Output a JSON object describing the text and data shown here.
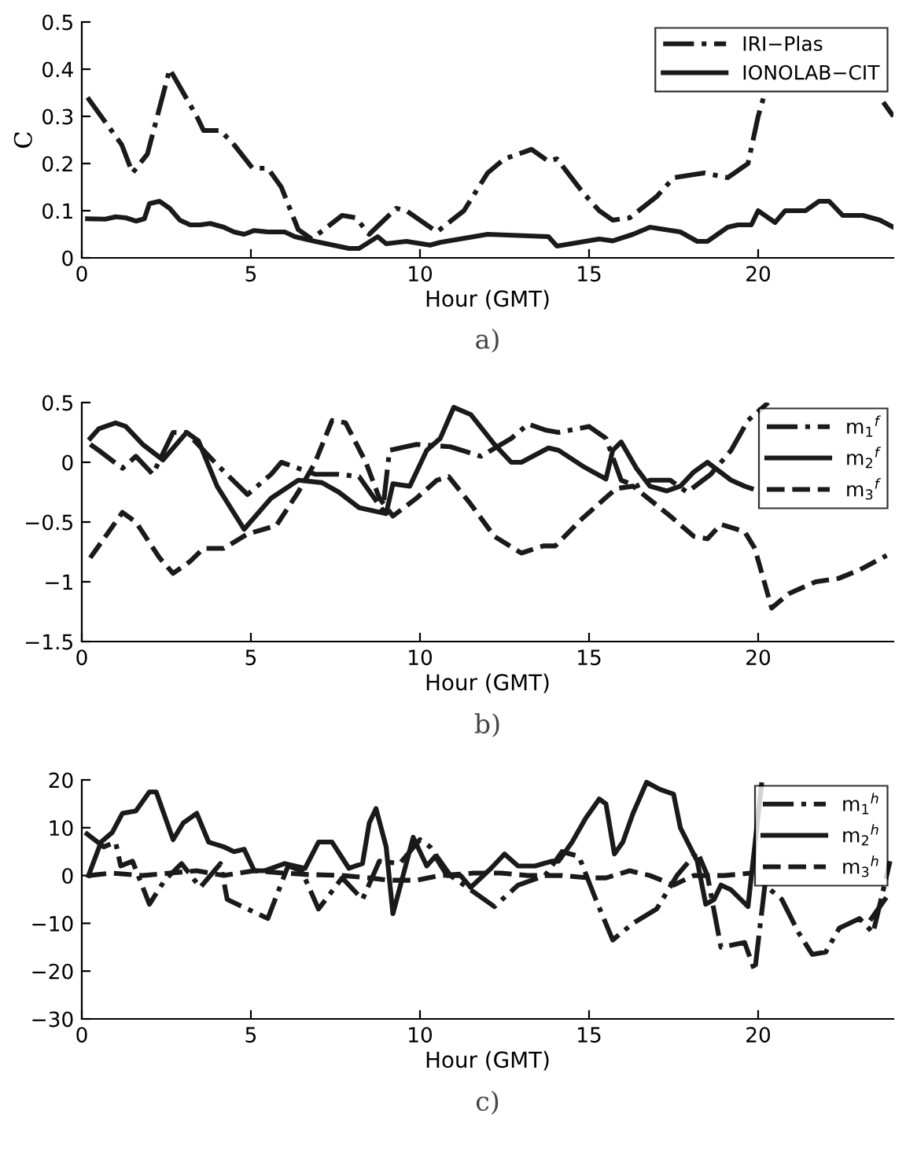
{
  "chart_data": [
    {
      "type": "line",
      "xlabel": "Hour (GMT)",
      "ylabel": "C",
      "annotations": [
        "a)"
      ],
      "xlim": [
        0,
        24
      ],
      "xticks": [
        0,
        5,
        10,
        15,
        20
      ],
      "ylim": [
        0,
        0.5
      ],
      "yticks": [
        0,
        0.1,
        0.2,
        0.3,
        0.4,
        0.5
      ],
      "grid": false,
      "legend": "top right",
      "series": [
        {
          "name": "IRI−Plas",
          "color": "#1a1a1a",
          "line_style": "dashdot",
          "x": [
            0.17,
            1.18,
            1.5,
            1.94,
            2.6,
            3.4,
            3.6,
            4.1,
            4.5,
            5.05,
            5.5,
            5.9,
            6.4,
            6.8,
            7.7,
            8.1,
            8.5,
            9.3,
            9.6,
            10.3,
            10.5,
            11.3,
            12.0,
            12.5,
            13.3,
            13.8,
            14.05,
            14.8,
            15.3,
            15.7,
            16.2,
            17.0,
            17.5,
            18.4,
            19.1,
            19.7,
            20.0,
            20.2,
            22.0,
            23.7,
            24.0
          ],
          "values": [
            0.34,
            0.24,
            0.18,
            0.22,
            0.4,
            0.3,
            0.27,
            0.27,
            0.24,
            0.19,
            0.19,
            0.15,
            0.06,
            0.04,
            0.09,
            0.085,
            0.05,
            0.105,
            0.1,
            0.065,
            0.055,
            0.1,
            0.18,
            0.21,
            0.23,
            0.205,
            0.21,
            0.14,
            0.1,
            0.08,
            0.085,
            0.13,
            0.17,
            0.18,
            0.17,
            0.2,
            0.3,
            0.35,
            null,
            0.33,
            0.3
          ]
        },
        {
          "name": "IONOLAB−CIT",
          "color": "#1a1a1a",
          "line_style": "solid",
          "x": [
            0.17,
            0.7,
            1.0,
            1.3,
            1.6,
            1.85,
            2.0,
            2.3,
            2.6,
            2.9,
            3.2,
            3.5,
            3.8,
            4.2,
            4.5,
            4.8,
            5.1,
            5.5,
            6.0,
            6.3,
            6.9,
            7.9,
            8.2,
            8.75,
            9.0,
            9.6,
            10.3,
            10.6,
            12.0,
            13.8,
            14.05,
            15.3,
            15.7,
            16.3,
            16.8,
            17.7,
            18.2,
            18.5,
            19.1,
            19.4,
            19.8,
            20.0,
            20.5,
            20.8,
            21.4,
            21.8,
            22.1,
            22.5,
            23.1,
            23.6,
            24.0
          ],
          "values": [
            0.083,
            0.082,
            0.087,
            0.085,
            0.078,
            0.083,
            0.115,
            0.12,
            0.105,
            0.08,
            0.07,
            0.07,
            0.073,
            0.065,
            0.055,
            0.05,
            0.058,
            0.055,
            0.055,
            0.045,
            0.035,
            0.02,
            0.02,
            0.045,
            0.03,
            0.035,
            0.027,
            0.033,
            0.05,
            0.045,
            0.025,
            0.04,
            0.036,
            0.05,
            0.065,
            0.055,
            0.035,
            0.035,
            0.065,
            0.07,
            0.07,
            0.1,
            0.075,
            0.1,
            0.1,
            0.12,
            0.12,
            0.09,
            0.09,
            0.08,
            0.065
          ]
        }
      ]
    },
    {
      "type": "line",
      "xlabel": "Hour (GMT)",
      "annotations": [
        "b)"
      ],
      "xlim": [
        0,
        24
      ],
      "xticks": [
        0,
        5,
        10,
        15,
        20
      ],
      "ylim": [
        -1.5,
        0.5
      ],
      "yticks": [
        {
          "value": -1.5,
          "label": "−1.5"
        },
        {
          "value": -1,
          "label": "−1"
        },
        {
          "value": -0.5,
          "label": "−0.5"
        },
        0,
        0.5
      ],
      "grid": false,
      "legend": "top right",
      "series": [
        {
          "name": "m$_{1}$$^{f}$",
          "color": "#1a1a1a",
          "line_style": "dashdot",
          "x": [
            0.25,
            0.5,
            1.2,
            1.6,
            2.1,
            2.7,
            3.1,
            4.0,
            4.9,
            5.6,
            5.9,
            6.9,
            7.6,
            8.2,
            8.9,
            9.1,
            9.9,
            10.9,
            11.8,
            12.7,
            13.2,
            13.7,
            14.1,
            15.0,
            15.5,
            15.95,
            16.4,
            16.8,
            17.4,
            17.9,
            18.6,
            19.2,
            19.7,
            20.3
          ],
          "values": [
            0.15,
            0.1,
            -0.05,
            0.05,
            -0.1,
            0.25,
            0.25,
            -0.02,
            -0.27,
            -0.1,
            0.0,
            -0.1,
            -0.1,
            -0.12,
            -0.4,
            0.1,
            0.15,
            0.13,
            0.05,
            0.2,
            0.32,
            0.27,
            0.25,
            0.3,
            0.2,
            -0.15,
            -0.2,
            -0.15,
            -0.15,
            -0.25,
            -0.1,
            0.1,
            0.35,
            0.5
          ]
        },
        {
          "name": "m$_{2}$$^{f}$",
          "color": "#1a1a1a",
          "line_style": "solid",
          "x": [
            0.25,
            0.5,
            1.0,
            1.3,
            1.8,
            2.4,
            3.1,
            3.45,
            4.0,
            4.8,
            5.6,
            6.4,
            7.1,
            7.6,
            8.2,
            9.0,
            9.2,
            9.7,
            10.2,
            10.6,
            11.0,
            11.5,
            12.2,
            12.7,
            13.0,
            13.8,
            14.1,
            14.8,
            15.5,
            15.7,
            15.95,
            16.4,
            16.8,
            17.3,
            17.7,
            18.1,
            18.5,
            19.2,
            19.6,
            19.8
          ],
          "values": [
            0.2,
            0.28,
            0.33,
            0.3,
            0.15,
            0.02,
            0.25,
            0.18,
            -0.2,
            -0.56,
            -0.3,
            -0.15,
            -0.17,
            -0.25,
            -0.38,
            -0.43,
            -0.18,
            -0.2,
            0.1,
            0.2,
            0.46,
            0.4,
            0.15,
            0.0,
            0.0,
            0.12,
            0.1,
            -0.03,
            -0.14,
            0.1,
            0.17,
            -0.05,
            -0.2,
            -0.24,
            -0.2,
            -0.08,
            0.0,
            -0.15,
            -0.2,
            -0.22
          ]
        },
        {
          "name": "m$_{3}$$^{f}$",
          "color": "#1a1a1a",
          "line_style": "dashed",
          "x": [
            0.25,
            1.2,
            1.6,
            2.3,
            2.7,
            3.2,
            3.6,
            4.2,
            4.9,
            5.75,
            6.4,
            6.9,
            7.4,
            7.8,
            8.4,
            8.8,
            9.2,
            9.9,
            10.5,
            10.85,
            11.5,
            12.2,
            13.0,
            13.65,
            14.0,
            14.8,
            15.8,
            16.3,
            17.4,
            18.1,
            18.5,
            18.9,
            19.6,
            19.9,
            20.4,
            20.9,
            21.7,
            22.4,
            23.0,
            23.8
          ],
          "values": [
            -0.8,
            -0.42,
            -0.5,
            -0.8,
            -0.93,
            -0.83,
            -0.72,
            -0.72,
            -0.6,
            -0.53,
            -0.25,
            0.0,
            0.35,
            0.33,
            0.0,
            -0.3,
            -0.45,
            -0.3,
            -0.15,
            -0.12,
            -0.35,
            -0.62,
            -0.76,
            -0.7,
            -0.7,
            -0.47,
            -0.22,
            -0.2,
            -0.45,
            -0.62,
            -0.64,
            -0.52,
            -0.58,
            -0.72,
            -1.22,
            -1.1,
            -1.0,
            -0.97,
            -0.9,
            -0.78
          ]
        }
      ]
    },
    {
      "type": "line",
      "xlabel": "Hour (GMT)",
      "annotations": [
        "c)"
      ],
      "xlim": [
        0,
        24
      ],
      "xticks": [
        0,
        5,
        10,
        15,
        20
      ],
      "ylim": [
        -30,
        20
      ],
      "yticks": [
        {
          "value": -30,
          "label": "−30"
        },
        {
          "value": -20,
          "label": "−20"
        },
        {
          "value": -10,
          "label": "−10"
        },
        0,
        10,
        20
      ],
      "grid": false,
      "legend": "top right",
      "series": [
        {
          "name": "m$_{1}$$^{h}$",
          "color": "#1a1a1a",
          "line_style": "dashdot",
          "x": [
            0.1,
            0.65,
            1.0,
            1.15,
            1.5,
            2.0,
            2.45,
            2.95,
            3.5,
            4.1,
            4.3,
            4.9,
            5.5,
            6.1,
            6.5,
            7.0,
            7.7,
            8.3,
            8.8,
            9.4,
            10.0,
            10.3,
            10.9,
            12.2,
            12.9,
            13.7,
            14.2,
            14.7,
            15.2,
            15.7,
            16.3,
            17.0,
            17.6,
            18.2,
            18.5,
            18.9,
            19.6,
            19.9,
            20.2,
            20.7,
            21.2,
            21.6,
            22.0,
            22.4,
            23.0,
            23.4,
            23.9
          ],
          "values": [
            9,
            6,
            7,
            2,
            3,
            -6,
            -1,
            2.5,
            -2.5,
            2.5,
            -5,
            -7,
            -9,
            2,
            1,
            -7,
            -0.5,
            -5,
            3,
            2.5,
            7.5,
            6,
            0,
            -6.5,
            -2,
            0,
            5,
            4,
            -5,
            -13.5,
            -10,
            -7,
            0,
            5,
            0,
            -15,
            -14,
            -20,
            -2,
            -5,
            -12,
            -16.5,
            -16,
            -11,
            -9,
            -12,
            3
          ]
        },
        {
          "name": "m$_{2}$$^{h}$",
          "color": "#1a1a1a",
          "line_style": "solid",
          "x": [
            0.2,
            0.57,
            0.9,
            1.2,
            1.6,
            2.0,
            2.2,
            2.7,
            3.0,
            3.4,
            3.75,
            4.2,
            4.5,
            4.8,
            5.1,
            5.4,
            6.0,
            6.6,
            7.0,
            7.4,
            7.9,
            8.3,
            8.5,
            8.7,
            9.0,
            9.2,
            9.8,
            10.2,
            10.45,
            10.8,
            11.2,
            11.5,
            12.1,
            12.5,
            12.9,
            13.4,
            13.9,
            14.1,
            14.5,
            14.9,
            15.3,
            15.5,
            15.75,
            16.0,
            16.3,
            16.7,
            17.1,
            17.5,
            17.7,
            18.2,
            18.45,
            18.7,
            18.9,
            19.2,
            19.7,
            20.1,
            22.0,
            23.35,
            23.75
          ],
          "values": [
            0,
            7,
            9,
            13,
            13.5,
            17.5,
            17.5,
            7.5,
            11,
            13,
            7,
            6,
            5,
            5.5,
            1,
            1,
            2.5,
            1.5,
            7,
            7,
            1.5,
            2.5,
            11,
            14,
            6,
            -8,
            8,
            2,
            4,
            0,
            0,
            -2.5,
            1.5,
            4.5,
            2,
            2,
            3,
            3,
            7,
            12,
            16,
            15,
            4.5,
            7,
            13,
            19.5,
            18,
            17,
            10,
            3,
            -6,
            -5,
            -2,
            -3,
            -6.5,
            19,
            null,
            -9,
            -5
          ]
        },
        {
          "name": "m$_{3}$$^{h}$",
          "color": "#1a1a1a",
          "line_style": "dashed",
          "x": [
            0.2,
            0.9,
            1.8,
            2.6,
            3.4,
            4.2,
            5.1,
            6.0,
            6.7,
            7.7,
            8.5,
            9.1,
            9.9,
            10.6,
            11.6,
            12.4,
            13.2,
            14.2,
            15.0,
            15.5,
            16.2,
            16.8,
            17.5,
            18.1,
            19.0,
            19.8
          ],
          "values": [
            0,
            0.5,
            0,
            0.5,
            1,
            0,
            1,
            0.5,
            0.2,
            0,
            -0.5,
            -1,
            -1,
            0,
            0.5,
            0.5,
            0,
            0,
            -0.5,
            -0.5,
            1,
            0,
            -2,
            0,
            0,
            0.5
          ]
        }
      ]
    }
  ]
}
